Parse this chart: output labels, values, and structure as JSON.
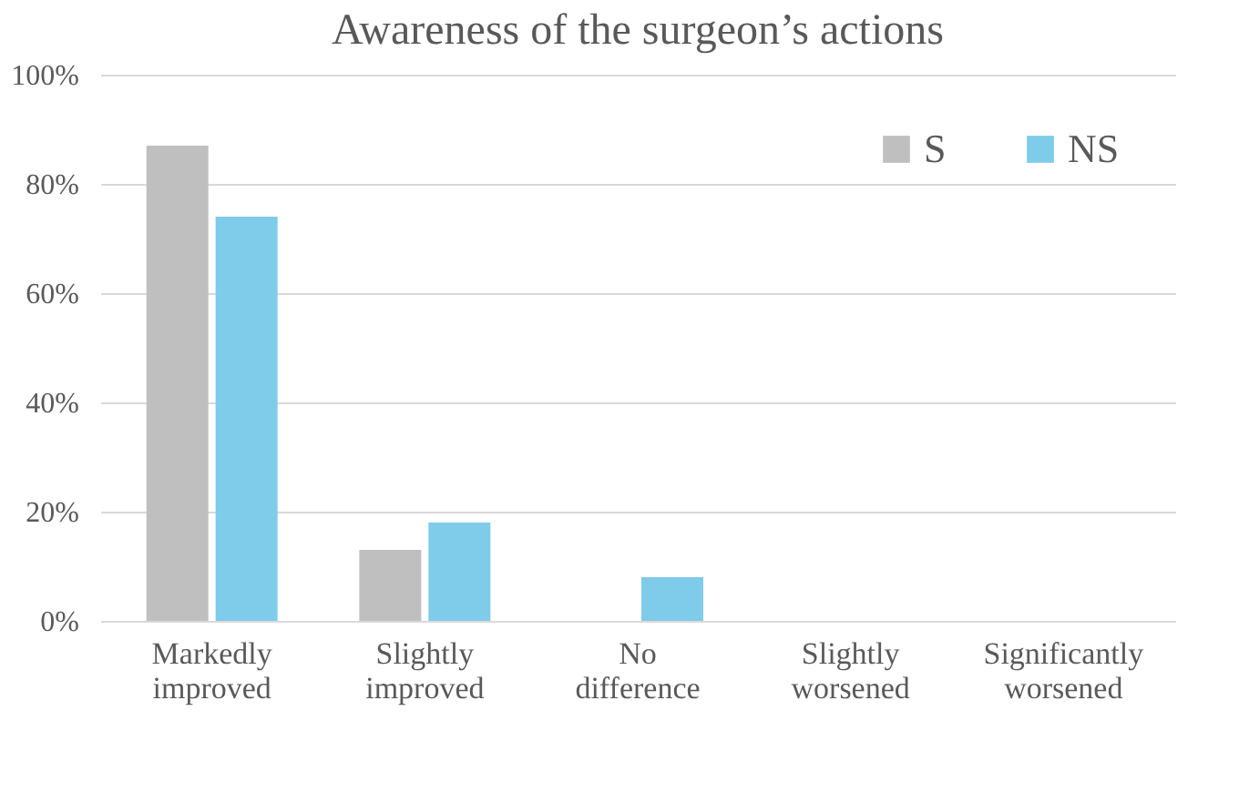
{
  "chart_data": {
    "type": "bar",
    "title": "Awareness of the surgeon’s actions",
    "categories": [
      "Markedly improved",
      "Slightly improved",
      "No difference",
      "Slightly worsened",
      "Significantly worsened"
    ],
    "series": [
      {
        "name": "S",
        "color": "#bfbfbf",
        "values": [
          87,
          13,
          0,
          0,
          0
        ]
      },
      {
        "name": "NS",
        "color": "#7ecbea",
        "values": [
          74,
          18,
          8,
          0,
          0
        ]
      }
    ],
    "ylim": [
      0,
      100
    ],
    "yticks": [
      {
        "value": 0,
        "label": "0%"
      },
      {
        "value": 20,
        "label": "20%"
      },
      {
        "value": 40,
        "label": "40%"
      },
      {
        "value": 60,
        "label": "60%"
      },
      {
        "value": 80,
        "label": "80%"
      },
      {
        "value": 100,
        "label": "100%"
      }
    ],
    "grid": "y",
    "legend": "top right"
  }
}
